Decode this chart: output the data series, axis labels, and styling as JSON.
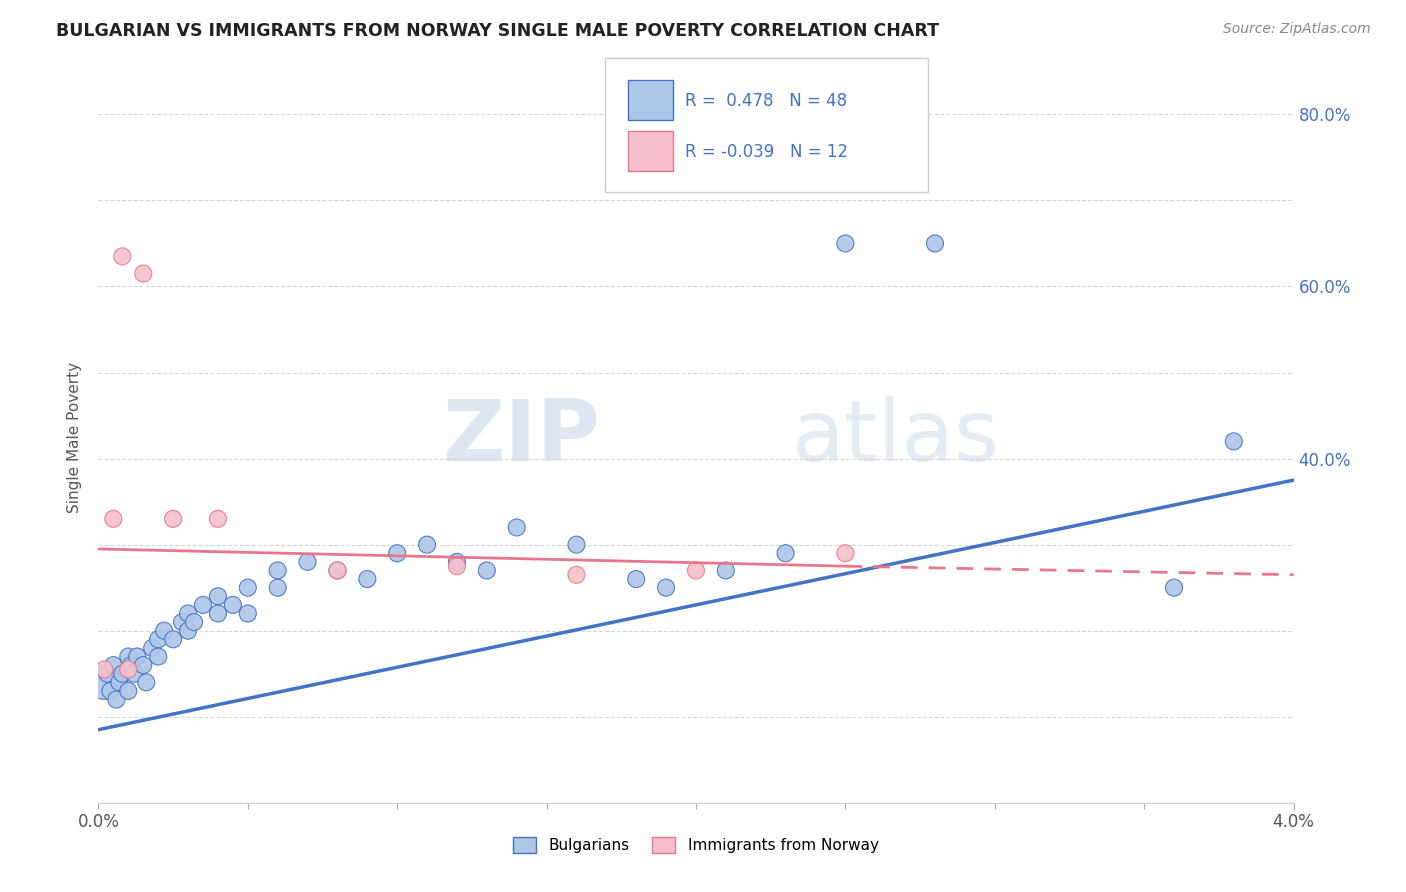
{
  "title": "BULGARIAN VS IMMIGRANTS FROM NORWAY SINGLE MALE POVERTY CORRELATION CHART",
  "source": "Source: ZipAtlas.com",
  "ylabel": "Single Male Poverty",
  "xlim": [
    0.0,
    0.04
  ],
  "ylim": [
    0.0,
    0.85
  ],
  "r_bulgarian": 0.478,
  "n_bulgarian": 48,
  "r_norway": -0.039,
  "n_norway": 12,
  "color_bulgarian": "#aec6e8",
  "color_norway": "#f5c0cb",
  "line_color_bulgarian": "#4472c4",
  "line_color_norway": "#e8768a",
  "watermark_zip": "ZIP",
  "watermark_atlas": "atlas",
  "bulgarian_x": [
    0.0002,
    0.0003,
    0.0004,
    0.0005,
    0.0006,
    0.0007,
    0.0008,
    0.001,
    0.001,
    0.0011,
    0.0012,
    0.0013,
    0.0015,
    0.0016,
    0.0018,
    0.002,
    0.002,
    0.0022,
    0.0025,
    0.0028,
    0.003,
    0.003,
    0.0032,
    0.0035,
    0.004,
    0.004,
    0.0045,
    0.005,
    0.005,
    0.006,
    0.006,
    0.007,
    0.008,
    0.009,
    0.01,
    0.011,
    0.012,
    0.013,
    0.014,
    0.016,
    0.018,
    0.019,
    0.021,
    0.023,
    0.025,
    0.028,
    0.036,
    0.038
  ],
  "bulgarian_y": [
    0.14,
    0.15,
    0.13,
    0.16,
    0.12,
    0.14,
    0.15,
    0.13,
    0.17,
    0.16,
    0.15,
    0.17,
    0.16,
    0.14,
    0.18,
    0.17,
    0.19,
    0.2,
    0.19,
    0.21,
    0.2,
    0.22,
    0.21,
    0.23,
    0.22,
    0.24,
    0.23,
    0.25,
    0.22,
    0.27,
    0.25,
    0.28,
    0.27,
    0.26,
    0.29,
    0.3,
    0.28,
    0.27,
    0.32,
    0.3,
    0.26,
    0.25,
    0.27,
    0.29,
    0.65,
    0.65,
    0.25,
    0.42
  ],
  "bulgarian_sizes": [
    600,
    150,
    150,
    150,
    150,
    150,
    150,
    150,
    150,
    150,
    150,
    150,
    150,
    150,
    150,
    150,
    150,
    150,
    150,
    150,
    150,
    150,
    150,
    150,
    150,
    150,
    150,
    150,
    150,
    150,
    150,
    150,
    150,
    150,
    150,
    150,
    150,
    150,
    150,
    150,
    150,
    150,
    150,
    150,
    150,
    150,
    150,
    150
  ],
  "norway_x": [
    0.0002,
    0.0005,
    0.0008,
    0.001,
    0.0015,
    0.0025,
    0.004,
    0.008,
    0.012,
    0.016,
    0.02,
    0.025
  ],
  "norway_y": [
    0.155,
    0.33,
    0.635,
    0.155,
    0.615,
    0.33,
    0.33,
    0.27,
    0.275,
    0.265,
    0.27,
    0.29
  ],
  "norway_sizes": [
    150,
    150,
    150,
    150,
    150,
    150,
    150,
    150,
    150,
    150,
    150,
    150
  ],
  "line_bul_x0": 0.0,
  "line_bul_y0": 0.085,
  "line_bul_x1": 0.04,
  "line_bul_y1": 0.375,
  "line_nor_x0": 0.0,
  "line_nor_y0": 0.295,
  "line_nor_x1": 0.025,
  "line_nor_y1": 0.275,
  "line_nor_dash_x0": 0.025,
  "line_nor_dash_y0": 0.275,
  "line_nor_dash_x1": 0.04,
  "line_nor_dash_y1": 0.265
}
